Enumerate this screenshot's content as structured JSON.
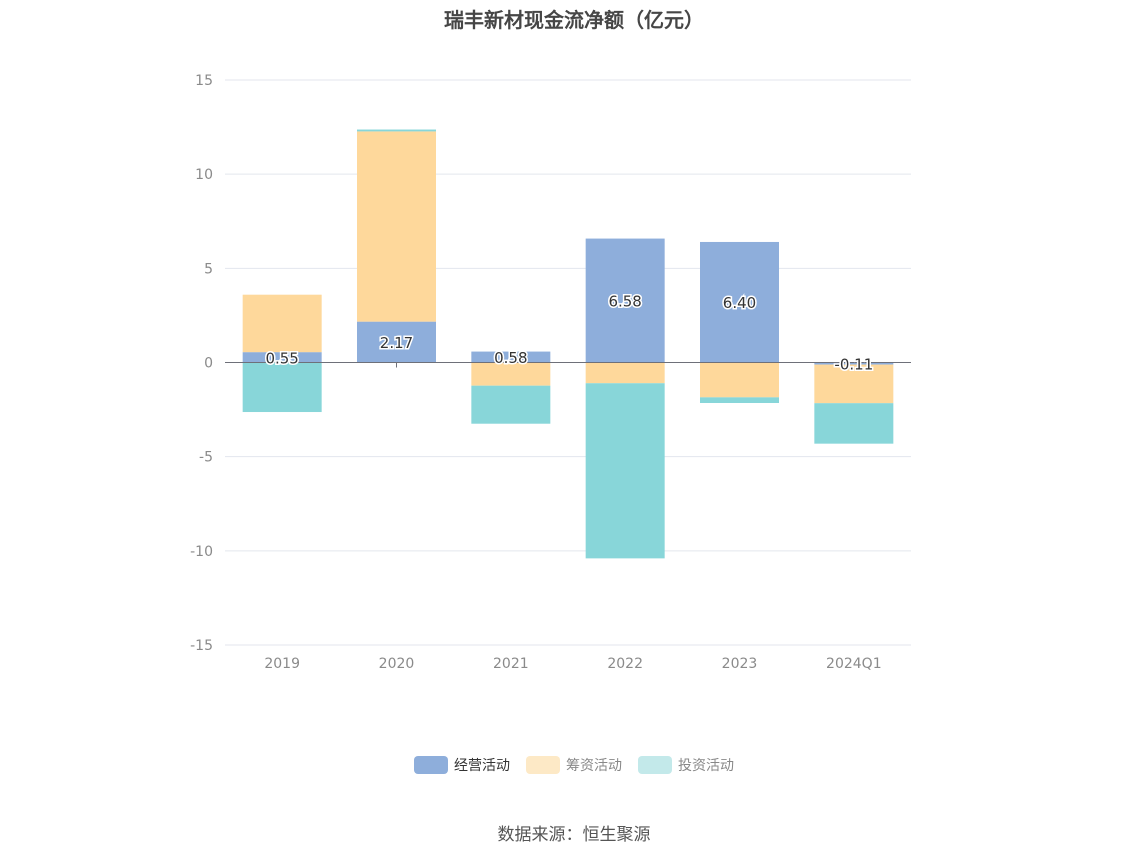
{
  "title": "瑞丰新材现金流净额（亿元）",
  "source": "数据来源：恒生聚源",
  "chart_data": {
    "type": "bar",
    "stacked": true,
    "title": "瑞丰新材现金流净额（亿元）",
    "categories": [
      "2019",
      "2020",
      "2021",
      "2022",
      "2023",
      "2024Q1"
    ],
    "ylim": [
      -15,
      15
    ],
    "yticks": [
      15,
      10,
      5,
      0,
      -5,
      -10,
      -15
    ],
    "grid": true,
    "legend_position": "bottom",
    "series": [
      {
        "name": "经营活动",
        "color": "#8eaedb",
        "values": [
          0.55,
          2.17,
          0.58,
          6.58,
          6.4,
          -0.11
        ],
        "labels": [
          "0.55",
          "2.17",
          "0.58",
          "6.58",
          "6.40",
          "-0.11"
        ]
      },
      {
        "name": "筹资活动",
        "color": "#fed89b",
        "values": [
          3.05,
          10.1,
          -1.23,
          -1.1,
          -1.85,
          -2.05
        ]
      },
      {
        "name": "投资活动",
        "color": "#88d6d9",
        "values": [
          -2.63,
          0.1,
          -2.02,
          -9.3,
          -0.3,
          -2.15
        ]
      }
    ],
    "legend_colors": [
      "#8eaedb",
      "#fde9c6",
      "#c3e9ea"
    ]
  }
}
